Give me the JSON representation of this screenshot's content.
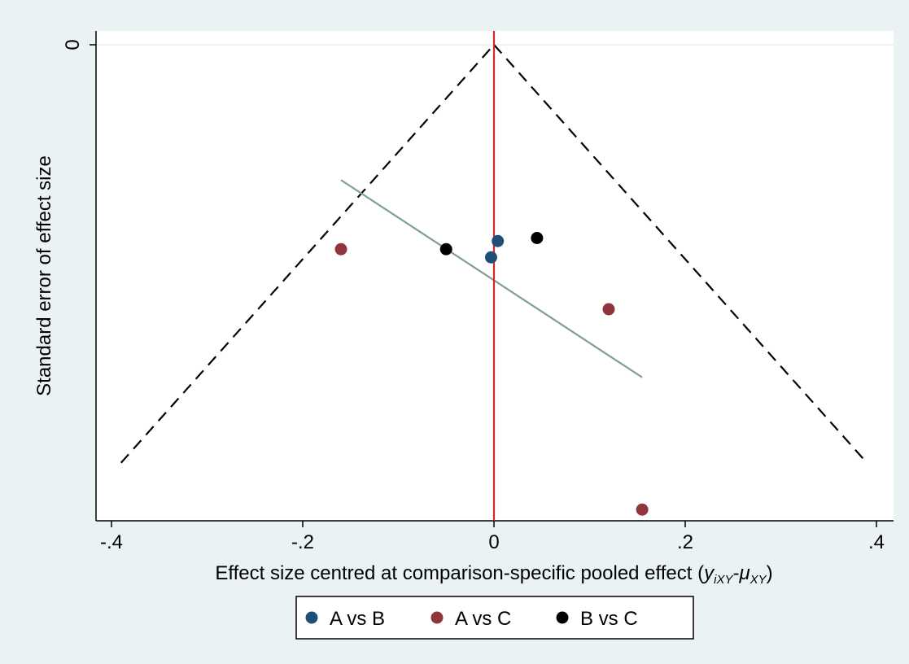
{
  "chart_data": {
    "type": "scatter",
    "ylabel": "Standard error of effect size",
    "xlabel": {
      "prefix": "Effect size centred at comparison-specific pooled effect (",
      "y_sym": "y",
      "y_sub": "iXY",
      "dash": "-",
      "mu_sym": "μ",
      "mu_sub": "XY",
      "suffix": ")"
    },
    "xlim": [
      -0.41,
      0.41
    ],
    "ylim_reversed": true,
    "x_ticks": [
      {
        "value": -0.4,
        "label": "-.4"
      },
      {
        "value": -0.2,
        "label": "-.2"
      },
      {
        "value": 0,
        "label": "0"
      },
      {
        "value": 0.2,
        "label": ".2"
      },
      {
        "value": 0.4,
        "label": ".4"
      }
    ],
    "y_ticks": [
      {
        "value": 0,
        "label": "0"
      }
    ],
    "series": [
      {
        "name": "A vs B",
        "color": "#1f4e79",
        "points": [
          {
            "x": 0.004,
            "y": 0.0965
          },
          {
            "x": -0.003,
            "y": 0.1045
          }
        ]
      },
      {
        "name": "A vs C",
        "color": "#90353b",
        "points": [
          {
            "x": -0.16,
            "y": 0.1005
          },
          {
            "x": 0.12,
            "y": 0.13
          },
          {
            "x": 0.155,
            "y": 0.2285
          }
        ]
      },
      {
        "name": "B vs C",
        "color": "#000000",
        "points": [
          {
            "x": -0.05,
            "y": 0.1005
          },
          {
            "x": 0.045,
            "y": 0.095
          }
        ]
      }
    ],
    "pseudo_ci": {
      "apex": [
        0,
        0
      ],
      "left_end": [
        -0.39,
        0.2055
      ],
      "right_end": [
        0.39,
        0.2055
      ],
      "color": "#000000"
    },
    "reference_line": {
      "x": 0,
      "color": "#d62728"
    },
    "regression_line": {
      "start": [
        -0.16,
        0.0665
      ],
      "end": [
        0.155,
        0.1635
      ],
      "color": "#7f9f8f"
    },
    "legend": {
      "position": "bottom"
    },
    "colors": {
      "outer_background": "#eaf2f3",
      "plot_background": "#ffffff",
      "gridline": "#eaf2f3"
    }
  }
}
